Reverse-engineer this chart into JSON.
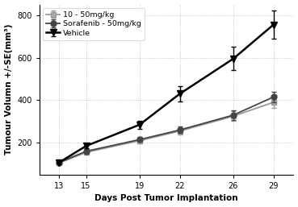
{
  "days": [
    13,
    15,
    19,
    22,
    26,
    29
  ],
  "series": [
    {
      "label": "10 - 50mg/kg",
      "values": [
        105,
        155,
        210,
        255,
        325,
        390
      ],
      "errors": [
        7,
        10,
        12,
        15,
        22,
        25
      ],
      "color": "#999999",
      "marker": "s",
      "markersize": 4,
      "linewidth": 1.3,
      "zorder": 2,
      "markerfacecolor": "#aaaaaa"
    },
    {
      "label": "Sorafenib - 50mg/kg",
      "values": [
        108,
        160,
        215,
        260,
        330,
        415
      ],
      "errors": [
        7,
        10,
        12,
        15,
        22,
        25
      ],
      "color": "#444444",
      "marker": "o",
      "markersize": 5,
      "linewidth": 1.3,
      "zorder": 3,
      "markerfacecolor": "#444444"
    },
    {
      "label": "Vehicle",
      "values": [
        108,
        185,
        285,
        430,
        595,
        755
      ],
      "errors": [
        7,
        12,
        18,
        35,
        55,
        65
      ],
      "color": "#000000",
      "marker": "v",
      "markersize": 6,
      "linewidth": 1.8,
      "zorder": 4,
      "markerfacecolor": "#000000"
    }
  ],
  "xlabel": "Days Post Tumor Implantation",
  "ylabel": "Tumour Volumn +/-SE(mm³)",
  "xlim": [
    11.5,
    30.5
  ],
  "ylim": [
    50,
    850
  ],
  "yticks": [
    200,
    400,
    600,
    800
  ],
  "xticks": [
    13,
    15,
    19,
    22,
    26,
    29
  ],
  "legend_loc": "upper left",
  "axis_fontsize": 7.5,
  "tick_fontsize": 7,
  "legend_fontsize": 6.8
}
